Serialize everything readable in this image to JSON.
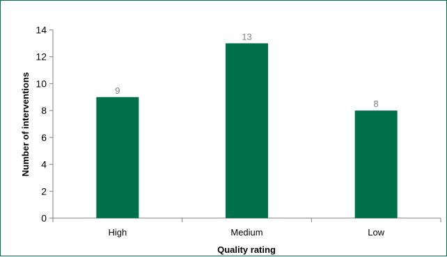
{
  "chart_data": {
    "type": "bar",
    "categories": [
      "High",
      "Medium",
      "Low"
    ],
    "values": [
      9,
      13,
      8
    ],
    "data_labels": [
      "9",
      "13",
      "8"
    ],
    "title": "",
    "xlabel": "Quality rating",
    "ylabel": "Number of interventions",
    "ylim": [
      0,
      14
    ],
    "yticks": [
      0,
      2,
      4,
      6,
      8,
      10,
      12,
      14
    ],
    "ytick_labels": [
      "0",
      "2",
      "4",
      "6",
      "8",
      "10",
      "12",
      "14"
    ],
    "grid": false,
    "legend": "none",
    "bar_color": "#00704a",
    "frame_color": "#00704a",
    "data_label_color": "#808080"
  }
}
